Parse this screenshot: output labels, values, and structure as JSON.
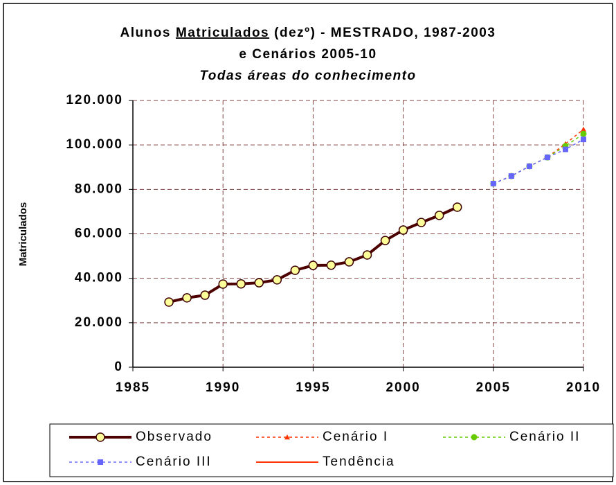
{
  "chart_data": {
    "type": "line",
    "title": [
      "Alunos",
      "Matriculados",
      "(dezº) - MESTRADO, 1987-2003"
    ],
    "subtitle": "e Cenários 2005-10",
    "subtitle2": "Todas áreas do conhecimento",
    "y_label": "Matriculados",
    "xlim": [
      1985,
      2010
    ],
    "xticks": [
      1985,
      1990,
      1995,
      2000,
      2005,
      2010
    ],
    "ylim": [
      0,
      120000
    ],
    "yticks": [
      0,
      {
        "value": 20000,
        "label": "20.000"
      },
      {
        "value": 40000,
        "label": "40.000"
      },
      {
        "value": 60000,
        "label": "60.000"
      },
      {
        "value": 80000,
        "label": "80.000"
      },
      {
        "value": 100000,
        "label": "100.000"
      },
      {
        "value": 120000,
        "label": "120.000"
      }
    ],
    "grid": true,
    "series": [
      {
        "name": "Observado",
        "color": "#4d0000",
        "marker": "circle",
        "marker_color": "#ffff99",
        "dashed": false,
        "x": [
          1987,
          1988,
          1989,
          1990,
          1991,
          1992,
          1993,
          1994,
          1995,
          1996,
          1997,
          1998,
          1999,
          2000,
          2001,
          2002,
          2003
        ],
        "values": [
          29300,
          31200,
          32400,
          37400,
          37500,
          38000,
          39300,
          43600,
          45800,
          45900,
          47400,
          50500,
          57000,
          61700,
          65100,
          68300,
          72000
        ]
      },
      {
        "name": "Cenário I",
        "color": "#ff3300",
        "marker": "triangle",
        "marker_color": "#ff3300",
        "dashed": true,
        "x": [
          2005,
          2006,
          2007,
          2008,
          2009,
          2010
        ],
        "values": [
          82600,
          86000,
          90400,
          94500,
          100500,
          107000
        ]
      },
      {
        "name": "Cenário II",
        "color": "#66cc00",
        "marker": "circle",
        "marker_color": "#66cc00",
        "dashed": true,
        "x": [
          2005,
          2006,
          2007,
          2008,
          2009,
          2010
        ],
        "values": [
          82600,
          86000,
          90400,
          94400,
          99500,
          105000
        ]
      },
      {
        "name": "Cenário III",
        "color": "#6666ff",
        "marker": "square",
        "marker_color": "#6666ff",
        "dashed": true,
        "x": [
          2005,
          2006,
          2007,
          2008,
          2009,
          2010
        ],
        "values": [
          82600,
          86000,
          90400,
          94400,
          98000,
          102500
        ]
      },
      {
        "name": "Tendência",
        "color": "#ff3300",
        "marker": "none",
        "marker_color": "#ff3300",
        "dashed": false,
        "x": [],
        "values": []
      }
    ]
  }
}
